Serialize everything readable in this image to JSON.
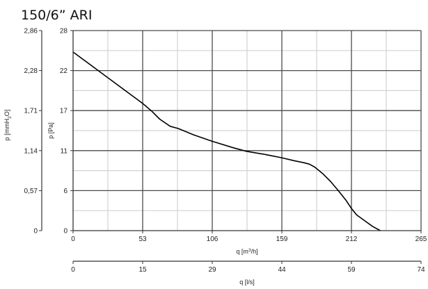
{
  "chart_data": {
    "type": "line",
    "title": "150/6” ARI",
    "x_primary": {
      "label_pre": "q [m",
      "label_sup": "3",
      "label_post": "/h]",
      "range": [
        0,
        265
      ],
      "ticks": [
        "0",
        "53",
        "106",
        "159",
        "212",
        "265"
      ]
    },
    "x_secondary": {
      "label": "q [l/s]",
      "range": [
        0,
        74
      ],
      "ticks": [
        "0",
        "15",
        "29",
        "44",
        "59",
        "74"
      ]
    },
    "y_primary": {
      "label": "p [Pa]",
      "range": [
        0,
        28
      ],
      "ticks": [
        "0",
        "6",
        "11",
        "17",
        "22",
        "28"
      ]
    },
    "y_secondary": {
      "label_pre": "p [mmH",
      "label_sub": "2",
      "label_post": "O]",
      "range": [
        0,
        2.86
      ],
      "ticks": [
        "0",
        "0,57",
        "1,14",
        "1,71",
        "2,28",
        "2,86"
      ]
    },
    "grid": true,
    "series": [
      {
        "color": "#000000",
        "x": [
          0,
          26.5,
          53,
          60,
          66,
          74,
          80,
          92,
          106,
          122,
          132,
          145,
          159,
          168,
          176,
          180,
          184,
          190,
          196,
          202,
          208,
          212,
          216,
          222,
          228,
          234
        ],
        "y": [
          25.0,
          21.4,
          17.8,
          16.7,
          15.6,
          14.6,
          14.3,
          13.4,
          12.5,
          11.6,
          11.1,
          10.7,
          10.2,
          9.8,
          9.5,
          9.3,
          8.9,
          8.0,
          6.9,
          5.6,
          4.2,
          3.1,
          2.2,
          1.4,
          0.6,
          0.0
        ]
      }
    ]
  }
}
